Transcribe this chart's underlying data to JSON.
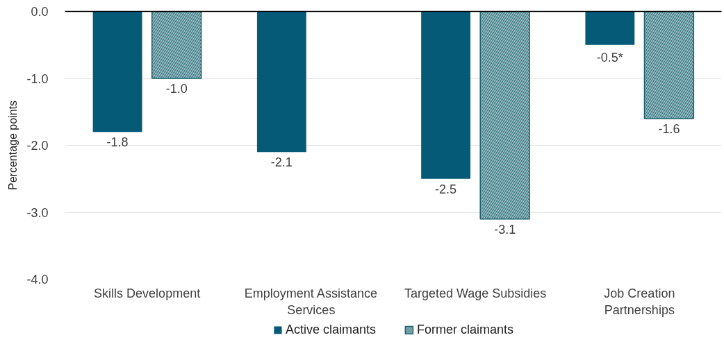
{
  "chart_data": {
    "type": "bar",
    "ylabel": "Percentage points",
    "categories": [
      "Skills Development",
      "Employment Assistance Services",
      "Targeted Wage Subsidies",
      "Job Creation Partnerships"
    ],
    "series": [
      {
        "name": "Active claimants",
        "color": "#055a78",
        "values": [
          -1.8,
          -2.1,
          -2.5,
          -0.5
        ],
        "value_labels": [
          "-1.8",
          "-2.1",
          "-2.5",
          "-0.5*"
        ]
      },
      {
        "name": "Former claimants",
        "color": "#a8c8ce",
        "values": [
          -1.0,
          null,
          -3.1,
          -1.6
        ],
        "value_labels": [
          "-1.0",
          null,
          "-3.1",
          "-1.6"
        ]
      }
    ],
    "ylim": [
      -4,
      0
    ],
    "yticks": [
      {
        "value": 0,
        "label": "0.0"
      },
      {
        "value": -1,
        "label": "-1.0"
      },
      {
        "value": -2,
        "label": "-2.0"
      },
      {
        "value": -3,
        "label": "-3.0"
      },
      {
        "value": -4,
        "label": "-4.0"
      }
    ],
    "grid": "y",
    "legend": "bottom"
  }
}
